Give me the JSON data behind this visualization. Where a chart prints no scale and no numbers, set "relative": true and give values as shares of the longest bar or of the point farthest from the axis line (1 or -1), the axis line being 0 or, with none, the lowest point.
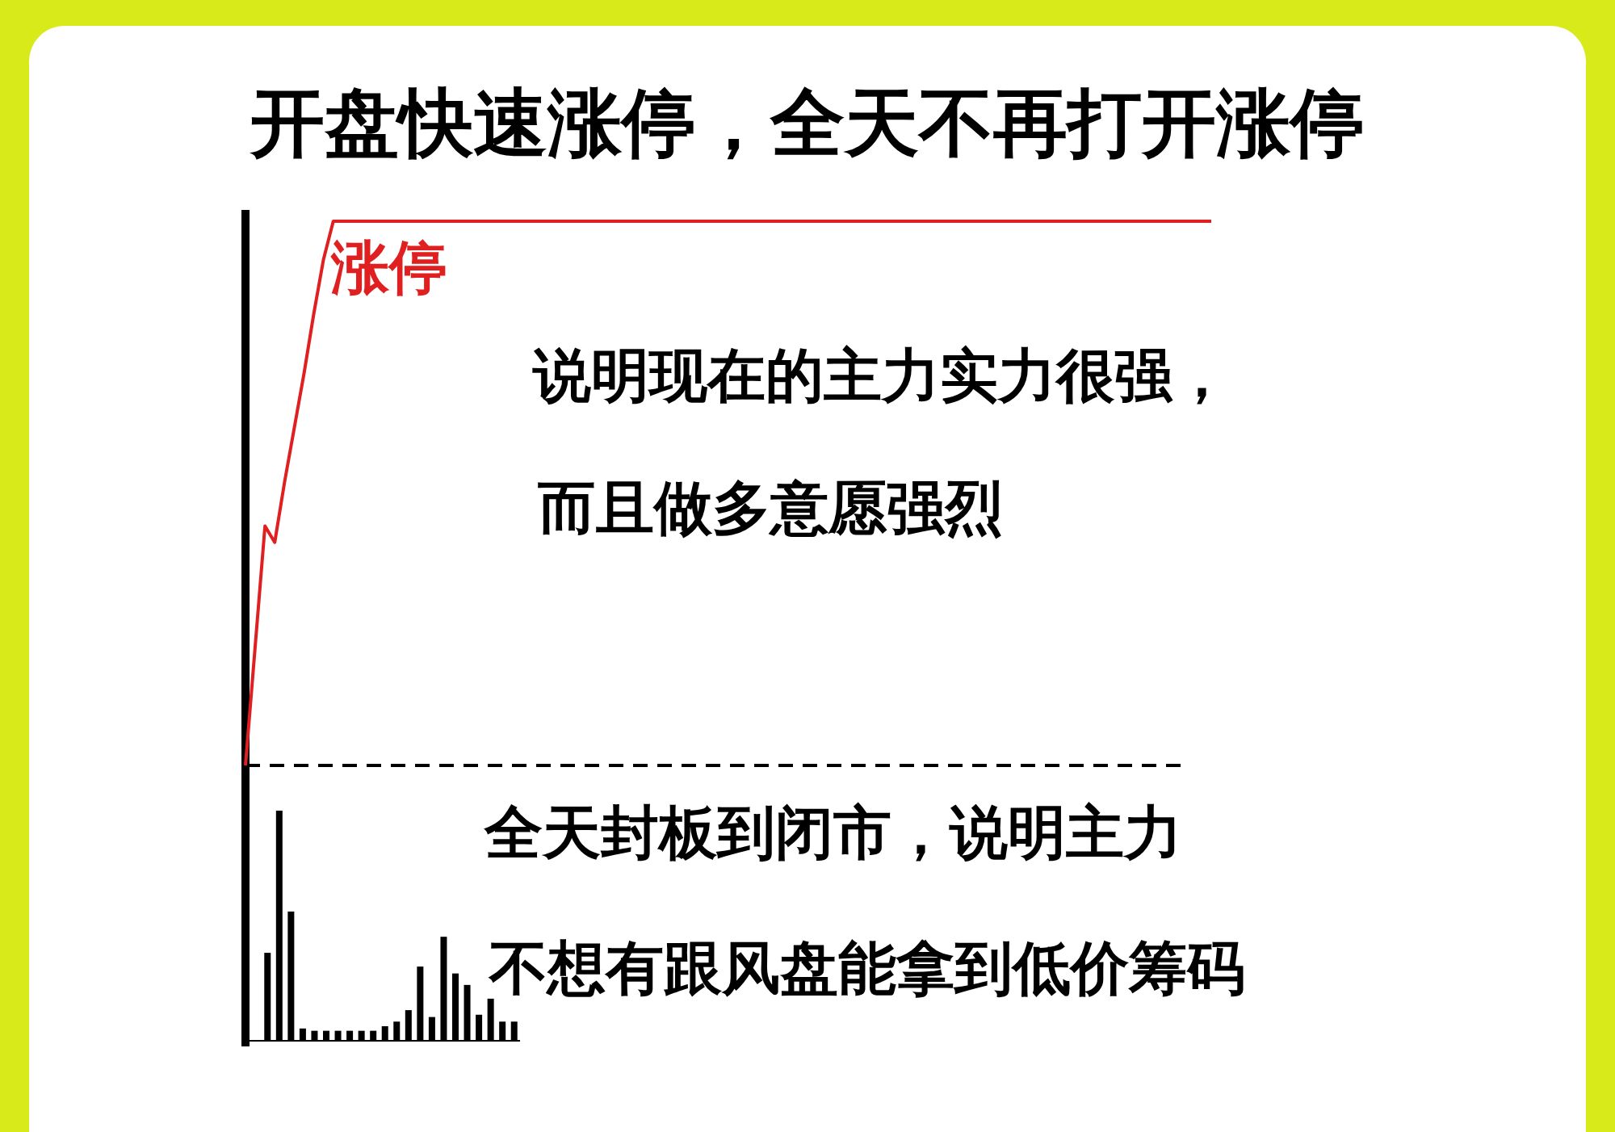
{
  "chart_data": [
    {
      "type": "line",
      "title": "开盘快速涨停，全天不再打开涨停",
      "relative": true,
      "categories": [
        null,
        null,
        null,
        null,
        null,
        null,
        null,
        null,
        null,
        null,
        null,
        null,
        null,
        null,
        null,
        null,
        null,
        null,
        null,
        null,
        null,
        null,
        null,
        null,
        null,
        null,
        null,
        null,
        null,
        null,
        null,
        null,
        null,
        null,
        null,
        null,
        null,
        null,
        null,
        null,
        null,
        null,
        null,
        null,
        null,
        null,
        null,
        null,
        null,
        null,
        null,
        null,
        null,
        null,
        null,
        null,
        null,
        null,
        null,
        null,
        null,
        null,
        null,
        null,
        null,
        null,
        null,
        null,
        null,
        null,
        null,
        null,
        null,
        null,
        null,
        null,
        null,
        null,
        null,
        null,
        null,
        null,
        null,
        null,
        null,
        null,
        null,
        null,
        null,
        null,
        null,
        null,
        null,
        null,
        null,
        null,
        null,
        null,
        null,
        null
      ],
      "series": [
        {
          "color": "#e02020",
          "values": [
            0,
            0.22,
            0.44,
            0.41,
            0.52,
            0.62,
            0.72,
            0.83,
            0.93,
            1,
            1,
            1,
            1,
            1,
            1,
            1,
            1,
            1,
            1,
            1,
            1,
            1,
            1,
            1,
            1,
            1,
            1,
            1,
            1,
            1,
            1,
            1,
            1,
            1,
            1,
            1,
            1,
            1,
            1,
            1,
            1,
            1,
            1,
            1,
            1,
            1,
            1,
            1,
            1,
            1,
            1,
            1,
            1,
            1,
            1,
            1,
            1,
            1,
            1,
            1,
            1,
            1,
            1,
            1,
            1,
            1,
            1,
            1,
            1,
            1,
            1,
            1,
            1,
            1,
            1,
            1,
            1,
            1,
            1,
            1,
            1,
            1,
            1,
            1,
            1,
            1,
            1,
            1,
            1,
            1,
            1,
            1,
            1,
            1,
            1,
            1,
            1,
            1,
            1,
            1
          ]
        }
      ],
      "annotations": [
        "涨停",
        "说明现在的主力实力很强，",
        "而且做多意愿强烈"
      ]
    },
    {
      "type": "bar",
      "relative": true,
      "categories": [
        null,
        null,
        null,
        null,
        null,
        null,
        null,
        null,
        null,
        null,
        null,
        null,
        null,
        null,
        null,
        null,
        null,
        null,
        null,
        null,
        null,
        null
      ],
      "values": [
        0.38,
        1,
        0.56,
        0.05,
        0.04,
        0.04,
        0.04,
        0.04,
        0.04,
        0.04,
        0.06,
        0.08,
        0.13,
        0.32,
        0.1,
        0.45,
        0.29,
        0.24,
        0.11,
        0.18,
        0.08,
        0.08
      ],
      "color": "#000000",
      "annotations": [
        "全天封板到闭市，说明主力",
        "不想有跟风盘能拿到低价筹码"
      ]
    }
  ]
}
